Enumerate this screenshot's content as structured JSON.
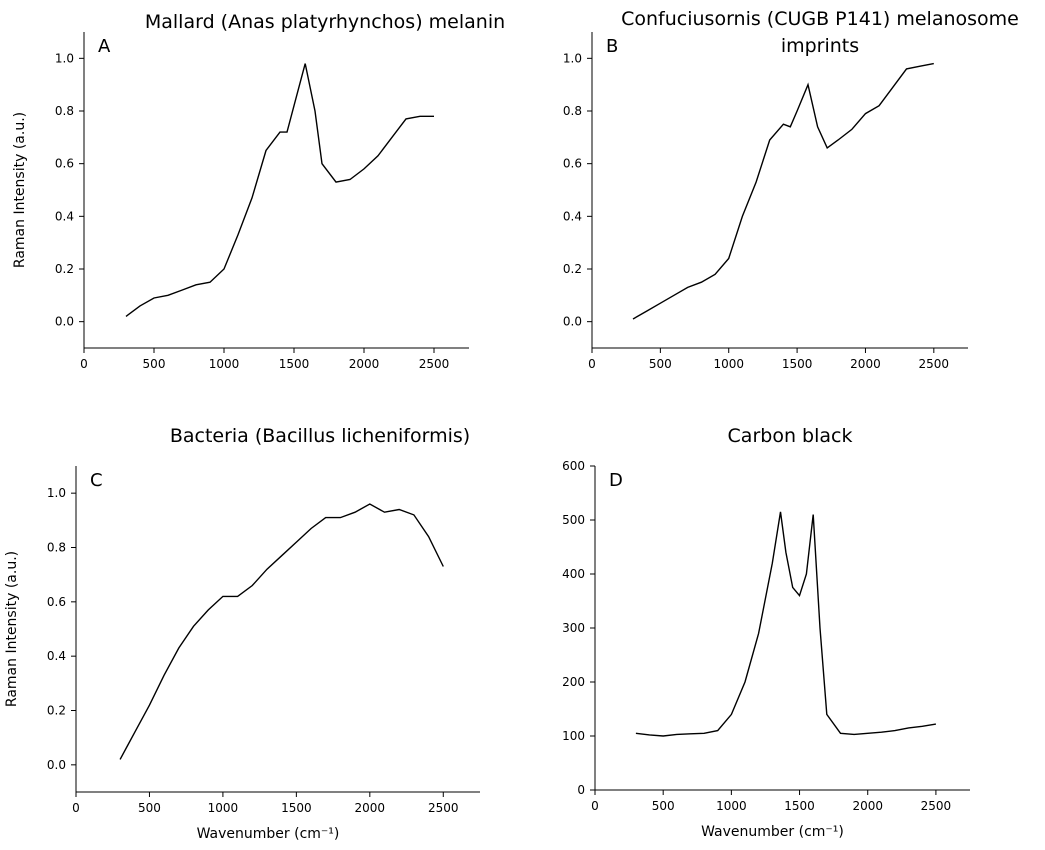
{
  "chart_data": [
    {
      "type": "line",
      "title": [
        "Mallard (Anas platyrhynchos) melanin"
      ],
      "panel_label": "A",
      "ylabel": "Raman Intensity (a.u.)",
      "x": [
        300,
        400,
        500,
        600,
        700,
        800,
        900,
        1000,
        1100,
        1200,
        1300,
        1400,
        1450,
        1500,
        1580,
        1650,
        1700,
        1800,
        1900,
        2000,
        2100,
        2200,
        2300,
        2400,
        2500
      ],
      "series": [
        {
          "color": "#000000",
          "values": [
            0.02,
            0.06,
            0.09,
            0.1,
            0.12,
            0.14,
            0.15,
            0.2,
            0.33,
            0.47,
            0.65,
            0.72,
            0.72,
            0.82,
            0.98,
            0.8,
            0.6,
            0.53,
            0.54,
            0.58,
            0.63,
            0.7,
            0.77,
            0.78,
            0.78
          ]
        }
      ],
      "xlim": [
        0,
        2750
      ],
      "xticks": [
        0,
        500,
        1000,
        1500,
        2000,
        2500
      ],
      "ylim": [
        -0.1,
        1.1
      ],
      "yticks": [
        {
          "value": 0,
          "label": "0.0"
        },
        0.2,
        0.4,
        0.6,
        0.8,
        {
          "value": 1,
          "label": "1.0"
        }
      ]
    },
    {
      "type": "line",
      "title": [
        "Confuciusornis (CUGB P141) melanosome",
        "imprints"
      ],
      "panel_label": "B",
      "x": [
        300,
        400,
        500,
        600,
        700,
        800,
        900,
        1000,
        1100,
        1200,
        1300,
        1400,
        1450,
        1500,
        1580,
        1650,
        1720,
        1800,
        1900,
        2000,
        2100,
        2200,
        2300,
        2400,
        2500
      ],
      "series": [
        {
          "color": "#000000",
          "values": [
            0.01,
            0.04,
            0.07,
            0.1,
            0.13,
            0.15,
            0.18,
            0.24,
            0.4,
            0.53,
            0.69,
            0.75,
            0.74,
            0.8,
            0.9,
            0.74,
            0.66,
            0.69,
            0.73,
            0.79,
            0.82,
            0.89,
            0.96,
            0.97,
            0.98
          ]
        }
      ],
      "xlim": [
        0,
        2750
      ],
      "xticks": [
        0,
        500,
        1000,
        1500,
        2000,
        2500
      ],
      "ylim": [
        -0.1,
        1.1
      ],
      "yticks": [
        {
          "value": 0,
          "label": "0.0"
        },
        0.2,
        0.4,
        0.6,
        0.8,
        {
          "value": 1,
          "label": "1.0"
        }
      ]
    },
    {
      "type": "line",
      "title": [
        "Bacteria (Bacillus licheniformis)"
      ],
      "panel_label": "C",
      "ylabel": "Raman Intensity (a.u.)",
      "xlabel": "Wavenumber (cm⁻¹)",
      "x": [
        300,
        400,
        500,
        600,
        700,
        800,
        900,
        1000,
        1100,
        1200,
        1300,
        1400,
        1500,
        1600,
        1700,
        1800,
        1900,
        2000,
        2100,
        2200,
        2300,
        2400,
        2500
      ],
      "series": [
        {
          "color": "#000000",
          "values": [
            0.02,
            0.12,
            0.22,
            0.33,
            0.43,
            0.51,
            0.57,
            0.62,
            0.62,
            0.66,
            0.72,
            0.77,
            0.82,
            0.87,
            0.91,
            0.91,
            0.93,
            0.96,
            0.93,
            0.94,
            0.92,
            0.84,
            0.73
          ]
        }
      ],
      "xlim": [
        0,
        2750
      ],
      "xticks": [
        0,
        500,
        1000,
        1500,
        2000,
        2500
      ],
      "ylim": [
        -0.1,
        1.1
      ],
      "yticks": [
        {
          "value": 0,
          "label": "0.0"
        },
        0.2,
        0.4,
        0.6,
        0.8,
        {
          "value": 1,
          "label": "1.0"
        }
      ]
    },
    {
      "type": "line",
      "title": [
        "Carbon black"
      ],
      "panel_label": "D",
      "xlabel": "Wavenumber (cm⁻¹)",
      "x": [
        300,
        400,
        500,
        600,
        700,
        800,
        900,
        1000,
        1100,
        1200,
        1300,
        1360,
        1400,
        1450,
        1500,
        1550,
        1600,
        1650,
        1700,
        1800,
        1900,
        2000,
        2100,
        2200,
        2300,
        2400,
        2500
      ],
      "series": [
        {
          "color": "#000000",
          "values": [
            105,
            102,
            100,
            103,
            104,
            105,
            110,
            140,
            200,
            290,
            420,
            515,
            440,
            375,
            360,
            400,
            510,
            300,
            140,
            105,
            103,
            105,
            107,
            110,
            115,
            118,
            122
          ]
        }
      ],
      "xlim": [
        0,
        2750
      ],
      "xticks": [
        0,
        500,
        1000,
        1500,
        2000,
        2500
      ],
      "ylim": [
        0,
        600
      ],
      "yticks": [
        0,
        100,
        200,
        300,
        400,
        500,
        600
      ]
    }
  ]
}
